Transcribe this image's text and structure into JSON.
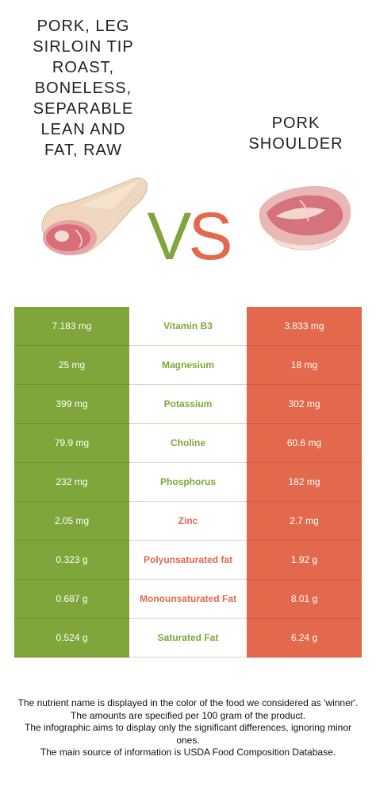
{
  "left_food": {
    "title": "Pork, leg\nsirloin tip\nroast,\nboneless,\nseparable\nlean and\nfat, raw",
    "color": "#7ea63a"
  },
  "right_food": {
    "title": "Pork\nshoulder",
    "color": "#e3694d"
  },
  "vs": {
    "v": "V",
    "s": "S"
  },
  "rows": [
    {
      "nutrient": "Vitamin B3",
      "left": "7.183 mg",
      "right": "3.833 mg",
      "winner": "left"
    },
    {
      "nutrient": "Magnesium",
      "left": "25 mg",
      "right": "18 mg",
      "winner": "left"
    },
    {
      "nutrient": "Potassium",
      "left": "399 mg",
      "right": "302 mg",
      "winner": "left"
    },
    {
      "nutrient": "Choline",
      "left": "79.9 mg",
      "right": "60.6 mg",
      "winner": "left"
    },
    {
      "nutrient": "Phosphorus",
      "left": "232 mg",
      "right": "182 mg",
      "winner": "left"
    },
    {
      "nutrient": "Zinc",
      "left": "2.05 mg",
      "right": "2.7 mg",
      "winner": "right"
    },
    {
      "nutrient": "Polyunsaturated fat",
      "left": "0.323 g",
      "right": "1.92 g",
      "winner": "right"
    },
    {
      "nutrient": "Monounsaturated Fat",
      "left": "0.687 g",
      "right": "8.01 g",
      "winner": "right"
    },
    {
      "nutrient": "Saturated Fat",
      "left": "0.524 g",
      "right": "6.24 g",
      "winner": "left"
    }
  ],
  "footer": {
    "line1": "The nutrient name is displayed in the color of the food we considered as 'winner'.",
    "line2": "The amounts are specified per 100 gram of the product.",
    "line3": "The infographic aims to display only the significant differences, ignoring minor ones.",
    "line4": "The main source of information is USDA Food Composition Database."
  }
}
